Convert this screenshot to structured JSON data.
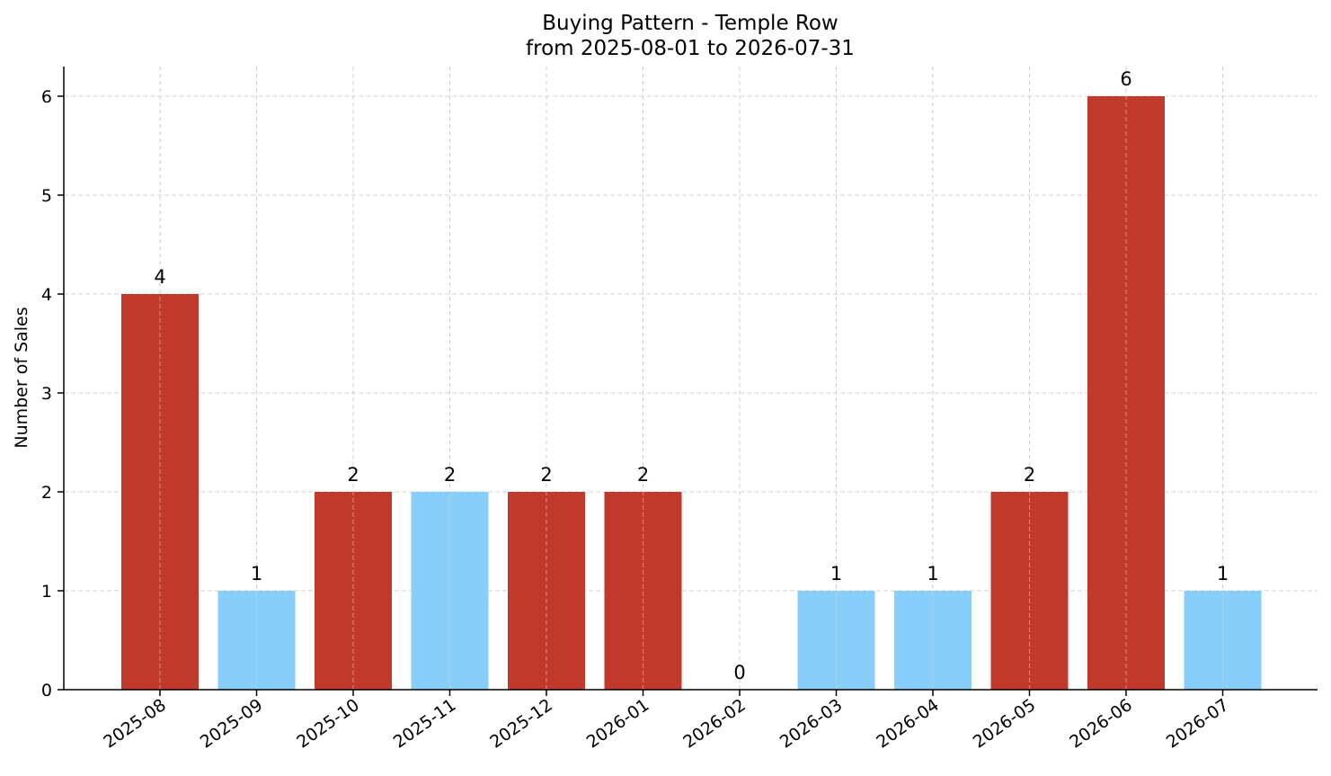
{
  "chart_data": {
    "type": "bar",
    "title": "Buying Pattern - Temple Row",
    "subtitle": "from 2025-08-01 to 2026-07-31",
    "xlabel": "",
    "ylabel": "Number of Sales",
    "categories": [
      "2025-08",
      "2025-09",
      "2025-10",
      "2025-11",
      "2025-12",
      "2026-01",
      "2026-02",
      "2026-03",
      "2026-04",
      "2026-05",
      "2026-06",
      "2026-07"
    ],
    "values": [
      4,
      1,
      2,
      2,
      2,
      2,
      0,
      1,
      1,
      2,
      6,
      1
    ],
    "bar_colors": [
      "#c0392b",
      "#87cefa",
      "#c0392b",
      "#87cefa",
      "#c0392b",
      "#c0392b",
      "#87cefa",
      "#87cefa",
      "#87cefa",
      "#c0392b",
      "#c0392b",
      "#87cefa"
    ],
    "data_labels": [
      "4",
      "1",
      "2",
      "2",
      "2",
      "2",
      "0",
      "1",
      "1",
      "2",
      "6",
      "1"
    ],
    "ylim": [
      0,
      6.3
    ],
    "yticks": [
      0,
      1,
      2,
      3,
      4,
      5,
      6
    ],
    "grid": true,
    "legend": "none"
  }
}
